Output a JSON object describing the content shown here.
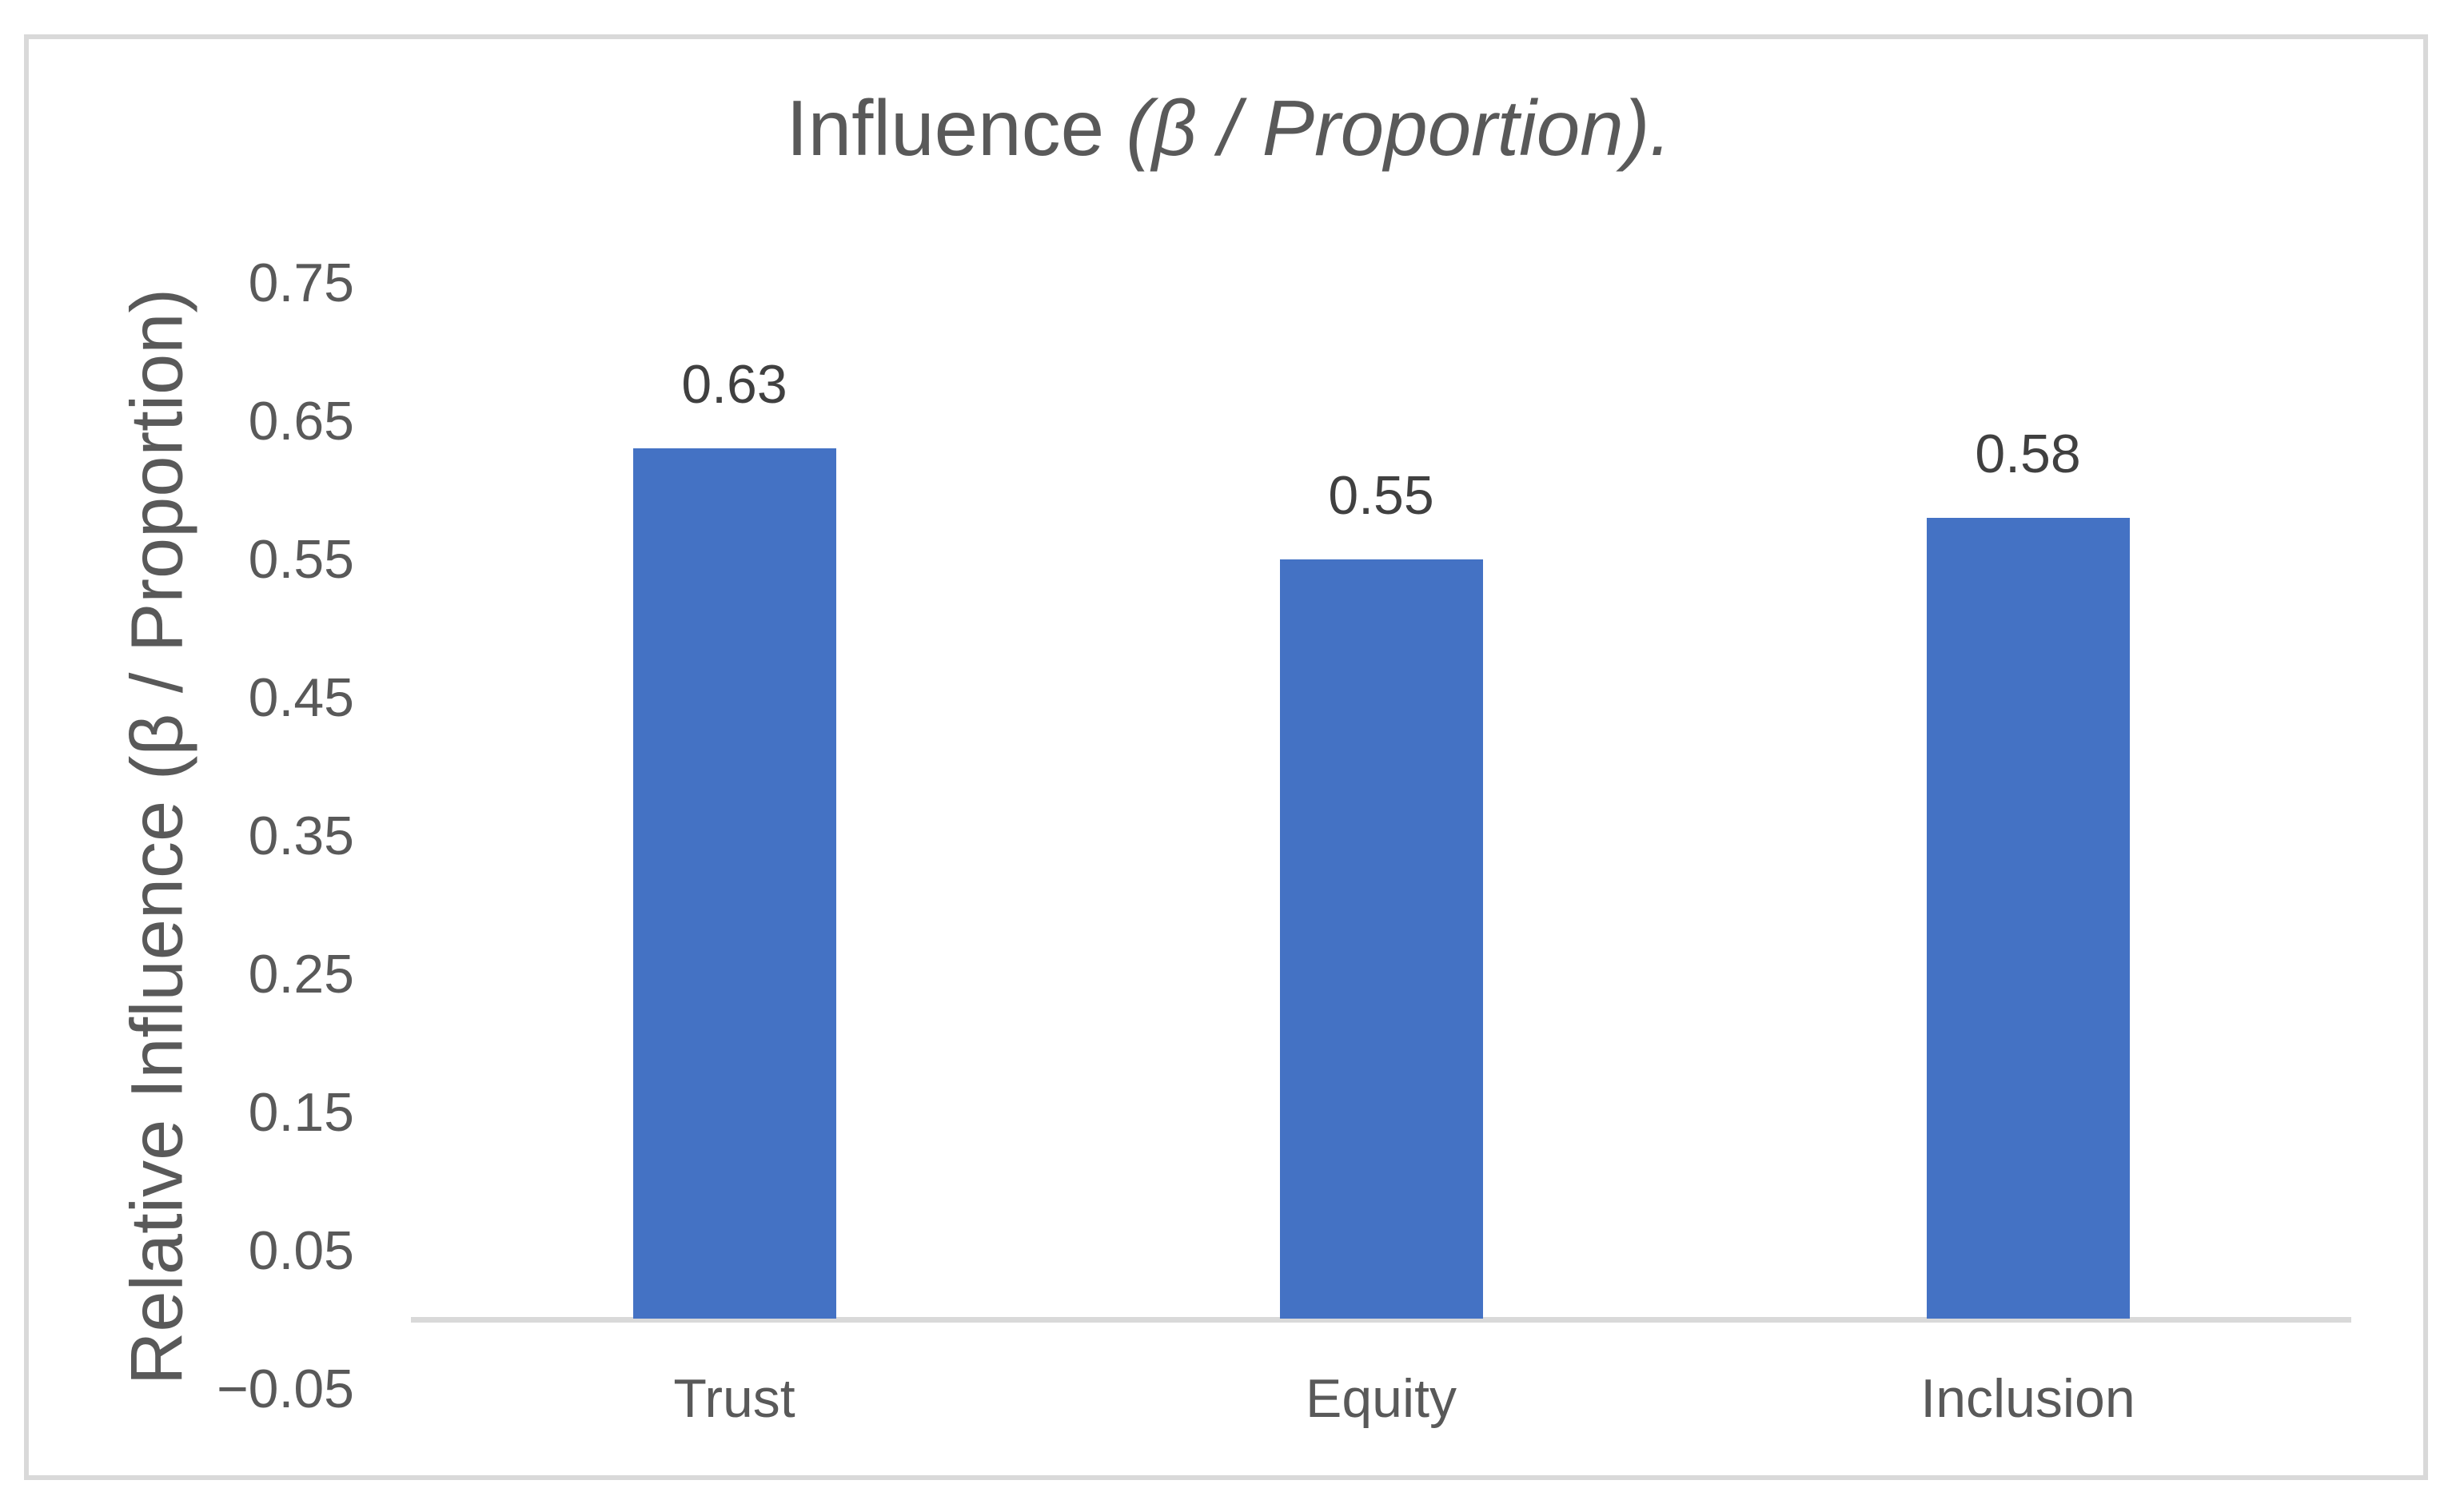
{
  "chart_data": {
    "type": "bar",
    "title": "Influence (β / Proportion).",
    "title_regular": "Influence ",
    "title_italic": "(β / Proportion).",
    "ylabel": "Relative Influence (β / Proportion)",
    "xlabel": "",
    "categories": [
      "Trust",
      "Equity",
      "Inclusion"
    ],
    "values": [
      0.63,
      0.55,
      0.58
    ],
    "data_labels": [
      "0.63",
      "0.55",
      "0.58"
    ],
    "yticks": [
      {
        "label": "0.75",
        "value": 0.75
      },
      {
        "label": "0.65",
        "value": 0.65
      },
      {
        "label": "0.55",
        "value": 0.55
      },
      {
        "label": "0.45",
        "value": 0.45
      },
      {
        "label": "0.35",
        "value": 0.35
      },
      {
        "label": "0.25",
        "value": 0.25
      },
      {
        "label": "0.15",
        "value": 0.15
      },
      {
        "label": "0.05",
        "value": 0.05
      },
      {
        "label": "−0.05",
        "value": -0.05
      }
    ],
    "ylim": [
      -0.05,
      0.75
    ],
    "grid": false,
    "legend": false,
    "colors": {
      "bar": "#4472C4",
      "axis_line": "#D9D9D9",
      "border": "#D9D9D9",
      "axis_text": "#595959",
      "title_text": "#595959",
      "data_label_text": "#404040",
      "background": "#FFFFFF"
    }
  }
}
